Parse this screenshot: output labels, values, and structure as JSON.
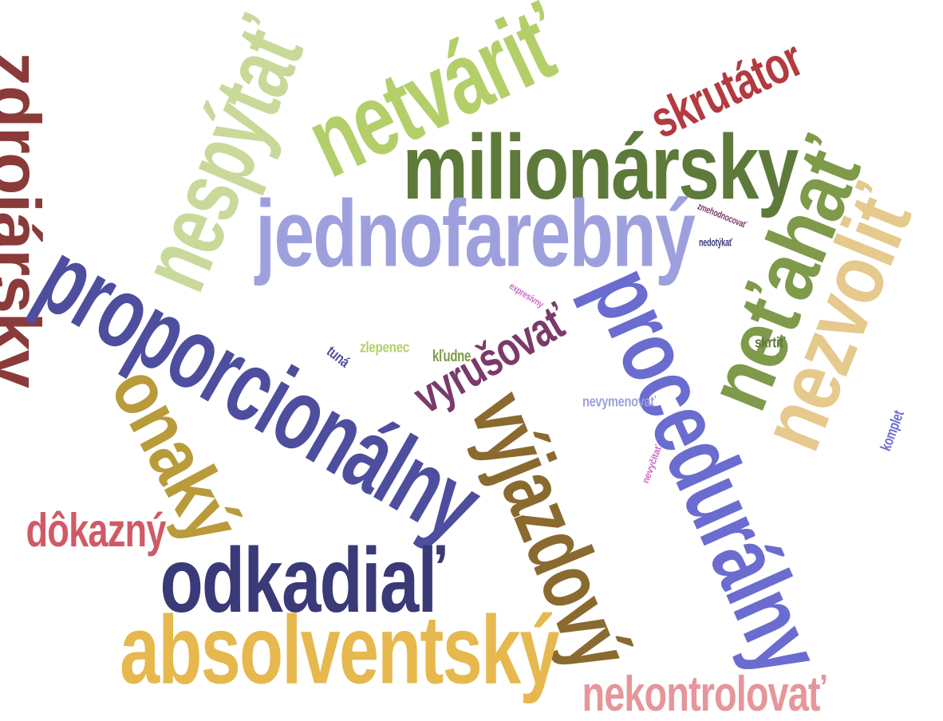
{
  "words": [
    {
      "text": "zdrojársky",
      "color": "#8b3a3a"
    },
    {
      "text": "nespýtať",
      "color": "#c9d99a"
    },
    {
      "text": "netváriť",
      "color": "#b4cf6a"
    },
    {
      "text": "skrutátor",
      "color": "#b23a40"
    },
    {
      "text": "milionársky",
      "color": "#5e7a3a"
    },
    {
      "text": "jednofarebný",
      "color": "#9ea0de"
    },
    {
      "text": "neťahať",
      "color": "#7e9a4a"
    },
    {
      "text": "nezvoliť",
      "color": "#e6c98c"
    },
    {
      "text": "proporcionálny",
      "color": "#4e4e9e"
    },
    {
      "text": "procedurálny",
      "color": "#6b6ccf"
    },
    {
      "text": "onaký",
      "color": "#b99b3a"
    },
    {
      "text": "výjazdový",
      "color": "#8a6a2e"
    },
    {
      "text": "vyrušovať",
      "color": "#7a3a6a"
    },
    {
      "text": "dôkazný",
      "color": "#cf5a66"
    },
    {
      "text": "odkadiaľ",
      "color": "#3a3a78"
    },
    {
      "text": "absolventský",
      "color": "#e6b84e"
    },
    {
      "text": "nekontrolovať",
      "color": "#e6969a"
    },
    {
      "text": "zlepenec",
      "color": "#b4cf6a"
    },
    {
      "text": "tuná",
      "color": "#4e4e9e"
    },
    {
      "text": "kľudne",
      "color": "#7e9a4a"
    },
    {
      "text": "expresívny",
      "color": "#cf6ac8"
    },
    {
      "text": "zmehodnocovať",
      "color": "#7a3a6a"
    },
    {
      "text": "nedotýkať",
      "color": "#3a3a78"
    },
    {
      "text": "skrtiť",
      "color": "#5e7a3a"
    },
    {
      "text": "nevymenovať",
      "color": "#9ea0de"
    },
    {
      "text": "nevyčítať",
      "color": "#cf6ac8"
    },
    {
      "text": "komplet",
      "color": "#6b6ccf"
    }
  ]
}
